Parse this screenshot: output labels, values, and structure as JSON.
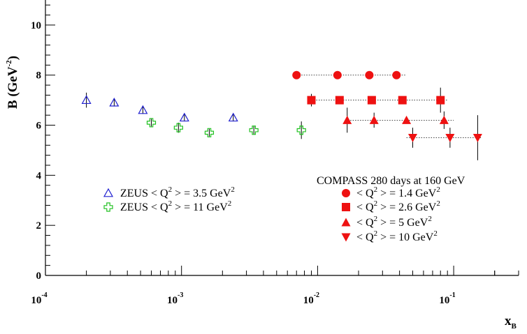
{
  "chart_data": {
    "type": "scatter",
    "x_scale": "log",
    "xlim": [
      0.0001,
      0.3
    ],
    "ylim": [
      0,
      11
    ],
    "xlabel": {
      "main": "x",
      "sub": "B"
    },
    "ylabel": {
      "main": "B (GeV",
      "sup": "-2",
      "end": ")"
    },
    "x_ticks": [
      {
        "value": 0.0001,
        "base": "10",
        "exp": "-4"
      },
      {
        "value": 0.001,
        "base": "10",
        "exp": "-3"
      },
      {
        "value": 0.01,
        "base": "10",
        "exp": "-2"
      },
      {
        "value": 0.1,
        "base": "10",
        "exp": "-1"
      }
    ],
    "y_ticks": [
      0,
      2,
      4,
      6,
      8,
      10
    ],
    "grid": false,
    "compass_title": "COMPASS  280 days at 160 GeV",
    "series": [
      {
        "experiment": "ZEUS",
        "label": {
          "name": "ZEUS",
          "pre": "< Q",
          "sup": "2",
          "mid": " > = 3.5 GeV",
          "sup2": "2"
        },
        "marker": "open-triangle",
        "color": "#2020d0",
        "points": [
          {
            "x": 0.0002,
            "y": 7.0,
            "err": 0.3
          },
          {
            "x": 0.00032,
            "y": 6.9,
            "err": 0.15
          },
          {
            "x": 0.00052,
            "y": 6.6,
            "err": 0.15
          },
          {
            "x": 0.00105,
            "y": 6.3,
            "err": 0.15
          },
          {
            "x": 0.0024,
            "y": 6.3,
            "err": 0.15
          }
        ]
      },
      {
        "experiment": "ZEUS",
        "label": {
          "name": "ZEUS",
          "pre": "< Q",
          "sup": "2",
          "mid": " > = 11 GeV",
          "sup2": "2"
        },
        "marker": "open-cross",
        "color": "#20c020",
        "points": [
          {
            "x": 0.0006,
            "y": 6.1,
            "err": 0.15
          },
          {
            "x": 0.00095,
            "y": 5.9,
            "err": 0.2
          },
          {
            "x": 0.0016,
            "y": 5.7,
            "err": 0.15
          },
          {
            "x": 0.0034,
            "y": 5.8,
            "err": 0.15
          },
          {
            "x": 0.0076,
            "y": 5.8,
            "err": 0.35
          }
        ]
      },
      {
        "experiment": "COMPASS",
        "label": {
          "pre": "< Q",
          "sup": "2",
          "mid": " > = 1.4 GeV",
          "sup2": "2"
        },
        "marker": "filled-circle",
        "color": "#ee1111",
        "x_range": [
          0.007,
          0.045
        ],
        "points": [
          {
            "x": 0.007,
            "y": 8.0,
            "err": 0
          },
          {
            "x": 0.014,
            "y": 8.0,
            "err": 0
          },
          {
            "x": 0.024,
            "y": 8.0,
            "err": 0
          },
          {
            "x": 0.038,
            "y": 8.0,
            "err": 0
          }
        ]
      },
      {
        "experiment": "COMPASS",
        "label": {
          "pre": "< Q",
          "sup": "2",
          "mid": " > = 2.6 GeV",
          "sup2": "2"
        },
        "marker": "filled-square",
        "color": "#ee1111",
        "x_range": [
          0.009,
          0.09
        ],
        "points": [
          {
            "x": 0.009,
            "y": 7.0,
            "err": 0.25
          },
          {
            "x": 0.0145,
            "y": 7.0,
            "err": 0
          },
          {
            "x": 0.025,
            "y": 7.0,
            "err": 0
          },
          {
            "x": 0.042,
            "y": 7.0,
            "err": 0
          },
          {
            "x": 0.08,
            "y": 7.0,
            "err": 0.5
          }
        ]
      },
      {
        "experiment": "COMPASS",
        "label": {
          "pre": "< Q",
          "sup": "2",
          "mid": " > = 5 GeV",
          "sup2": "2"
        },
        "marker": "filled-triangle-up",
        "color": "#ee1111",
        "x_range": [
          0.016,
          0.1
        ],
        "points": [
          {
            "x": 0.0165,
            "y": 6.2,
            "err": 0.5
          },
          {
            "x": 0.026,
            "y": 6.2,
            "err": 0.3
          },
          {
            "x": 0.045,
            "y": 6.2,
            "err": 0
          },
          {
            "x": 0.085,
            "y": 6.2,
            "err": 0.35
          }
        ]
      },
      {
        "experiment": "COMPASS",
        "label": {
          "pre": "< Q",
          "sup": "2",
          "mid": " > = 10 GeV",
          "sup2": "2"
        },
        "marker": "filled-triangle-down",
        "color": "#ee1111",
        "x_range": [
          0.045,
          0.16
        ],
        "points": [
          {
            "x": 0.05,
            "y": 5.5,
            "err": 0.4
          },
          {
            "x": 0.094,
            "y": 5.5,
            "err": 0.4
          },
          {
            "x": 0.15,
            "y": 5.5,
            "err": 0.9
          }
        ]
      }
    ]
  }
}
